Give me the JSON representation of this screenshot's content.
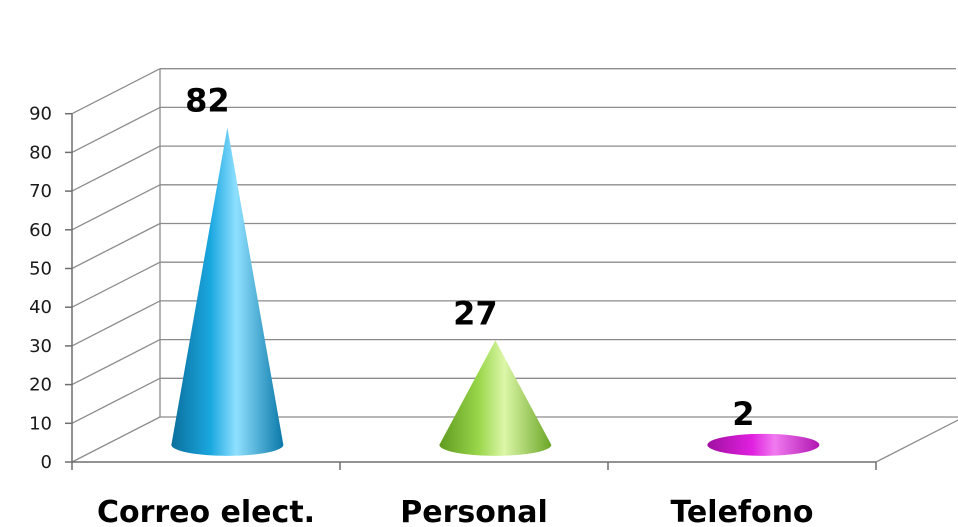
{
  "chart_data": {
    "type": "bar",
    "style": "3d-cone",
    "categories": [
      "Correo elect.",
      "Personal",
      "Telefono"
    ],
    "values": [
      82,
      27,
      2
    ],
    "data_labels": [
      "82",
      "27",
      "2"
    ],
    "colors": [
      "#1aa7e0",
      "#99d64a",
      "#e020e0"
    ],
    "y_ticks": [
      "0",
      "10",
      "20",
      "30",
      "40",
      "50",
      "60",
      "70",
      "80",
      "90"
    ],
    "ylim": [
      0,
      90
    ],
    "grid": true,
    "legend": "none"
  }
}
